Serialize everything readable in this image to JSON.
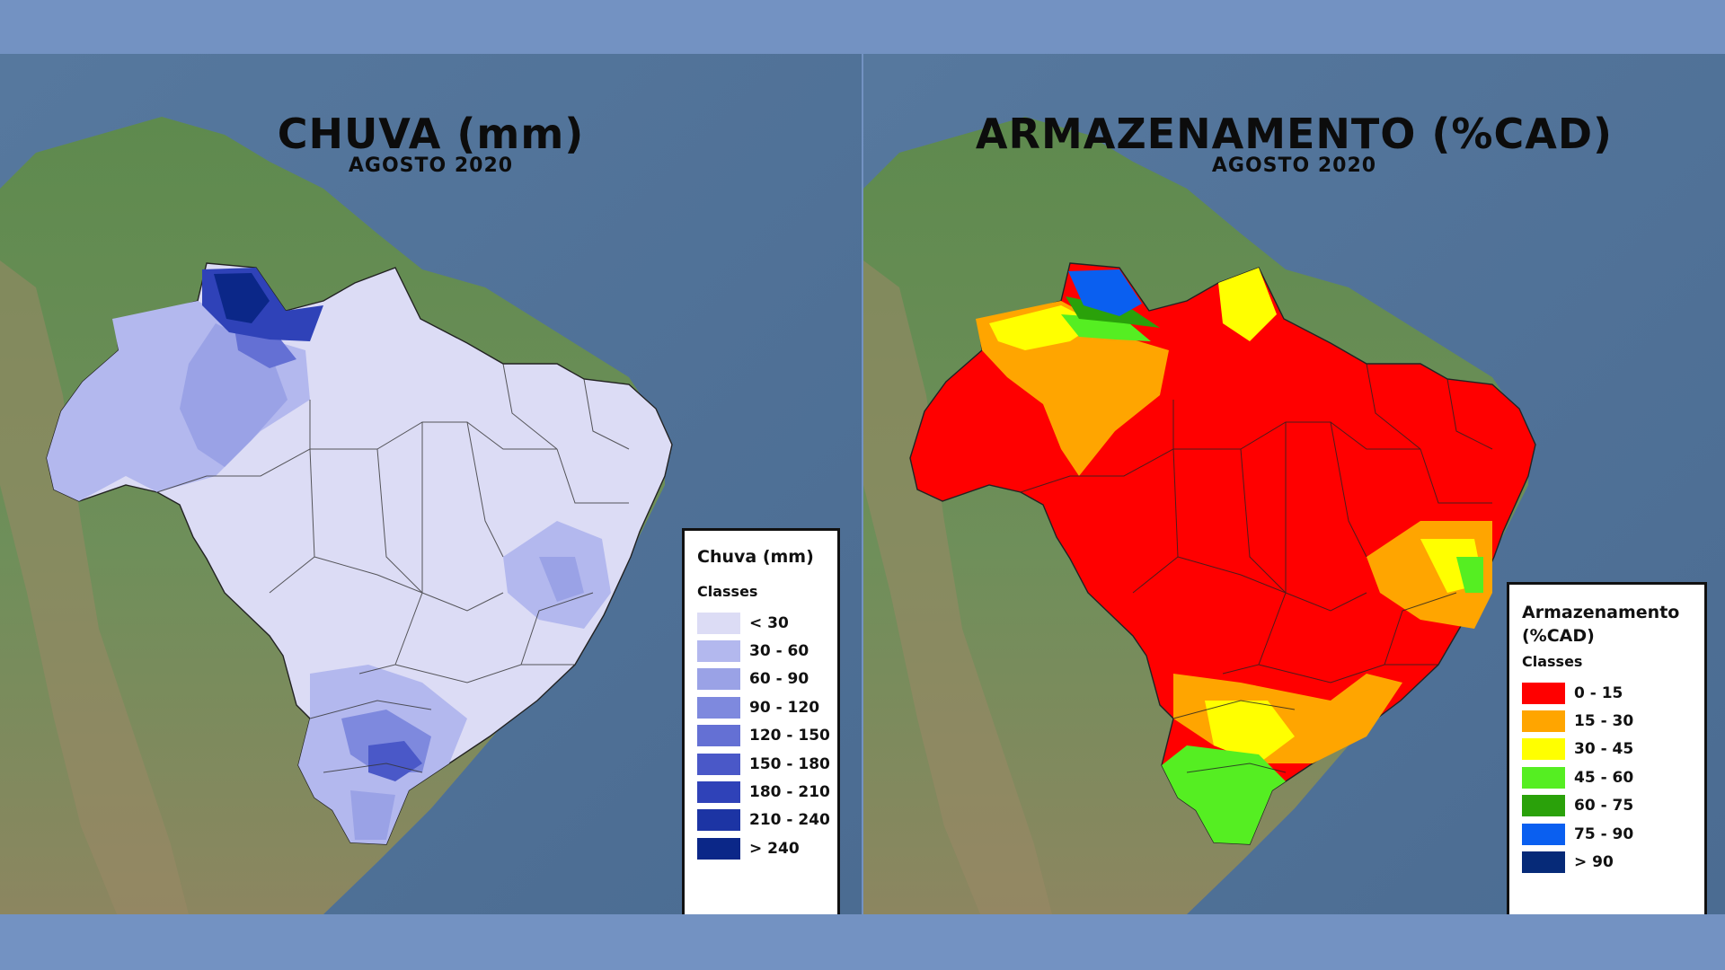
{
  "maps": [
    {
      "title": "CHUVA (mm)",
      "subtitle": "AGOSTO 2020",
      "legend": {
        "title": "Chuva (mm)",
        "subtitle": "Classes",
        "items": [
          {
            "label": "< 30",
            "color": "#dcdcf5"
          },
          {
            "label": "30 - 60",
            "color": "#b3b8ee"
          },
          {
            "label": "60 - 90",
            "color": "#9aa2e6"
          },
          {
            "label": "90 - 120",
            "color": "#7e89de"
          },
          {
            "label": "120 - 150",
            "color": "#6470d4"
          },
          {
            "label": "150 - 180",
            "color": "#4a58c8"
          },
          {
            "label": "180 - 210",
            "color": "#2f42b8"
          },
          {
            "label": "210 - 240",
            "color": "#1c34a4"
          },
          {
            "label": "> 240",
            "color": "#0b2788"
          }
        ]
      }
    },
    {
      "title": "ARMAZENAMENTO (%CAD)",
      "subtitle": "AGOSTO 2020",
      "legend": {
        "title": "Armazenamento (%CAD)",
        "subtitle": "Classes",
        "items": [
          {
            "label": "0 - 15",
            "color": "#ff0000"
          },
          {
            "label": "15 - 30",
            "color": "#ffa500"
          },
          {
            "label": "30 - 45",
            "color": "#ffff00"
          },
          {
            "label": "45 - 60",
            "color": "#55ee22"
          },
          {
            "label": "60 - 75",
            "color": "#2aa10a"
          },
          {
            "label": "75 - 90",
            "color": "#0a5ff0"
          },
          {
            "label": "> 90",
            "color": "#062a78"
          }
        ]
      }
    }
  ]
}
